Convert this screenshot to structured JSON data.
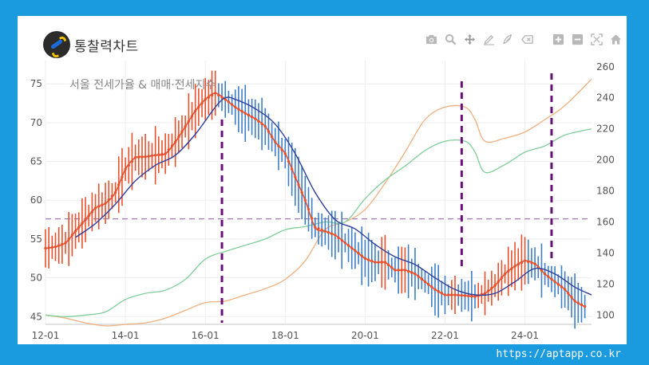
{
  "brand": {
    "name": "통찰력차트"
  },
  "toolbar": {
    "items": [
      "camera-icon",
      "zoom-icon",
      "pan-icon",
      "draw-line-icon",
      "draw-freeform-icon",
      "erase-shape-icon",
      "zoom-in-icon",
      "zoom-out-icon",
      "autoscale-icon",
      "reset-axes-icon"
    ]
  },
  "watermark": "https://aptapp.co.kr",
  "colors": {
    "background": "#1a9be0",
    "candle_up": "#e8502d",
    "candle_down": "#3d7ec4",
    "ratio_line": "#e8502d",
    "ma_line": "#2e3f9e",
    "sale_index": "#7fcf9a",
    "jeonse_index": "#f1b07f",
    "reference_line": "#a07ab8",
    "marker_line": "#6a0f7a"
  },
  "chart_data": {
    "type": "line",
    "title": "서울 전세가율 & 매매·전세지수",
    "x_ticks": [
      "12-01",
      "14-01",
      "16-01",
      "18-01",
      "20-01",
      "22-01",
      "24-01"
    ],
    "x_range": [
      "2012-01",
      "2025-09"
    ],
    "y_left": {
      "range": [
        44,
        78
      ],
      "ticks": [
        45,
        50,
        55,
        60,
        65,
        70,
        75
      ]
    },
    "y_right": {
      "range": [
        94,
        264
      ],
      "ticks": [
        100,
        120,
        140,
        160,
        180,
        200,
        220,
        240,
        260
      ]
    },
    "horizontal_reference": {
      "axis": "left",
      "value": 57.6
    },
    "vertical_markers": [
      "2016-06",
      "2022-06",
      "2024-09"
    ],
    "series": [
      {
        "key": "jeonse_ratio",
        "axis": "left",
        "style": "candle-line",
        "points": [
          [
            "2012-01",
            53.8
          ],
          [
            "2012-04",
            54.0
          ],
          [
            "2012-07",
            54.5
          ],
          [
            "2012-10",
            56.0
          ],
          [
            "2013-01",
            57.5
          ],
          [
            "2013-04",
            59.0
          ],
          [
            "2013-07",
            59.6
          ],
          [
            "2013-10",
            61.0
          ],
          [
            "2014-01",
            64.0
          ],
          [
            "2014-04",
            65.5
          ],
          [
            "2014-07",
            65.6
          ],
          [
            "2014-10",
            65.8
          ],
          [
            "2015-01",
            66.0
          ],
          [
            "2015-04",
            67.5
          ],
          [
            "2015-07",
            69.5
          ],
          [
            "2015-10",
            71.5
          ],
          [
            "2016-01",
            73.0
          ],
          [
            "2016-04",
            73.8
          ],
          [
            "2016-07",
            73.0
          ],
          [
            "2016-10",
            72.0
          ],
          [
            "2017-01",
            71.2
          ],
          [
            "2017-04",
            70.5
          ],
          [
            "2017-07",
            69.5
          ],
          [
            "2017-10",
            67.5
          ],
          [
            "2018-01",
            66.0
          ],
          [
            "2018-04",
            63.0
          ],
          [
            "2018-07",
            60.0
          ],
          [
            "2018-10",
            56.5
          ],
          [
            "2019-01",
            56.0
          ],
          [
            "2019-04",
            55.5
          ],
          [
            "2019-07",
            54.5
          ],
          [
            "2019-10",
            53.5
          ],
          [
            "2020-01",
            52.5
          ],
          [
            "2020-04",
            52.0
          ],
          [
            "2020-07",
            52.0
          ],
          [
            "2020-10",
            51.0
          ],
          [
            "2021-01",
            51.0
          ],
          [
            "2021-04",
            50.5
          ],
          [
            "2021-07",
            49.5
          ],
          [
            "2021-10",
            48.5
          ],
          [
            "2022-01",
            47.8
          ],
          [
            "2022-04",
            47.8
          ],
          [
            "2022-07",
            47.7
          ],
          [
            "2022-10",
            47.6
          ],
          [
            "2023-01",
            48.0
          ],
          [
            "2023-04",
            49.0
          ],
          [
            "2023-07",
            50.5
          ],
          [
            "2023-10",
            51.5
          ],
          [
            "2024-01",
            52.2
          ],
          [
            "2024-04",
            51.8
          ],
          [
            "2024-07",
            50.5
          ],
          [
            "2024-10",
            49.5
          ],
          [
            "2025-01",
            48.5
          ],
          [
            "2025-04",
            47.0
          ],
          [
            "2025-07",
            46.3
          ]
        ]
      },
      {
        "key": "jeonse_ratio_ma",
        "axis": "left",
        "style": "line",
        "points": [
          [
            "2012-10",
            55.2
          ],
          [
            "2013-04",
            57.0
          ],
          [
            "2013-10",
            59.5
          ],
          [
            "2014-04",
            62.5
          ],
          [
            "2014-10",
            64.5
          ],
          [
            "2015-04",
            65.8
          ],
          [
            "2015-10",
            68.5
          ],
          [
            "2016-04",
            72.0
          ],
          [
            "2016-07",
            73.2
          ],
          [
            "2016-10",
            73.0
          ],
          [
            "2017-04",
            71.8
          ],
          [
            "2017-10",
            69.8
          ],
          [
            "2018-04",
            66.0
          ],
          [
            "2018-10",
            61.0
          ],
          [
            "2019-04",
            57.5
          ],
          [
            "2019-10",
            56.3
          ],
          [
            "2020-04",
            54.3
          ],
          [
            "2020-10",
            52.7
          ],
          [
            "2021-04",
            51.7
          ],
          [
            "2021-10",
            50.0
          ],
          [
            "2022-04",
            48.5
          ],
          [
            "2022-10",
            47.8
          ],
          [
            "2023-04",
            48.0
          ],
          [
            "2023-10",
            49.5
          ],
          [
            "2024-04",
            51.2
          ],
          [
            "2024-10",
            50.5
          ],
          [
            "2025-04",
            48.8
          ],
          [
            "2025-09",
            47.8
          ]
        ]
      },
      {
        "key": "sale_index",
        "axis": "right",
        "style": "line",
        "points": [
          [
            "2012-01",
            100
          ],
          [
            "2012-07",
            99.0
          ],
          [
            "2013-01",
            100.0
          ],
          [
            "2013-07",
            102.0
          ],
          [
            "2014-01",
            110.0
          ],
          [
            "2014-07",
            114.0
          ],
          [
            "2015-01",
            116.0
          ],
          [
            "2015-07",
            123.0
          ],
          [
            "2016-01",
            136.0
          ],
          [
            "2016-07",
            141.0
          ],
          [
            "2017-01",
            145.0
          ],
          [
            "2017-07",
            149.0
          ],
          [
            "2018-01",
            155.0
          ],
          [
            "2018-07",
            157.0
          ],
          [
            "2019-01",
            160.0
          ],
          [
            "2019-07",
            160.0
          ],
          [
            "2020-01",
            175.0
          ],
          [
            "2020-07",
            187.0
          ],
          [
            "2021-01",
            196.0
          ],
          [
            "2021-07",
            206.0
          ],
          [
            "2022-01",
            212.0
          ],
          [
            "2022-07",
            212.0
          ],
          [
            "2022-10",
            205.0
          ],
          [
            "2023-01",
            192.0
          ],
          [
            "2023-07",
            197.0
          ],
          [
            "2024-01",
            205.0
          ],
          [
            "2024-07",
            209.0
          ],
          [
            "2025-01",
            216.0
          ],
          [
            "2025-09",
            220.0
          ]
        ]
      },
      {
        "key": "jeonse_index",
        "axis": "right",
        "style": "line",
        "points": [
          [
            "2012-01",
            100
          ],
          [
            "2012-07",
            98.0
          ],
          [
            "2013-01",
            95.0
          ],
          [
            "2013-07",
            93.0
          ],
          [
            "2014-01",
            94.0
          ],
          [
            "2014-07",
            95.0
          ],
          [
            "2015-01",
            98.0
          ],
          [
            "2015-07",
            103.0
          ],
          [
            "2016-01",
            108.0
          ],
          [
            "2016-07",
            109.0
          ],
          [
            "2017-01",
            113.0
          ],
          [
            "2017-07",
            117.0
          ],
          [
            "2018-01",
            123.0
          ],
          [
            "2018-07",
            135.0
          ],
          [
            "2019-01",
            155.0
          ],
          [
            "2019-07",
            160.0
          ],
          [
            "2020-01",
            168.0
          ],
          [
            "2020-07",
            185.0
          ],
          [
            "2021-01",
            205.0
          ],
          [
            "2021-07",
            226.0
          ],
          [
            "2022-01",
            234.0
          ],
          [
            "2022-07",
            234.0
          ],
          [
            "2022-10",
            226.0
          ],
          [
            "2023-01",
            212.0
          ],
          [
            "2023-07",
            214.0
          ],
          [
            "2024-01",
            218.0
          ],
          [
            "2024-07",
            226.0
          ],
          [
            "2025-01",
            235.0
          ],
          [
            "2025-09",
            252.0
          ]
        ]
      }
    ]
  }
}
